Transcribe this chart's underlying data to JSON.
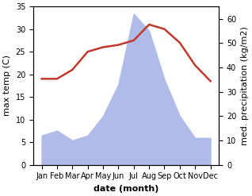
{
  "months": [
    "Jan",
    "Feb",
    "Mar",
    "Apr",
    "May",
    "Jun",
    "Jul",
    "Aug",
    "Sep",
    "Oct",
    "Nov",
    "Dec"
  ],
  "temperature": [
    19.0,
    19.0,
    21.0,
    25.0,
    26.0,
    26.5,
    27.5,
    31.0,
    30.0,
    27.0,
    22.0,
    18.5
  ],
  "precipitation": [
    12,
    14,
    10,
    12,
    20,
    33,
    62,
    55,
    35,
    20,
    11,
    11
  ],
  "temp_color": "#c0392b",
  "precip_fill_color": "#b0bce8",
  "xlabel": "date (month)",
  "ylabel_left": "max temp (C)",
  "ylabel_right": "med. precipitation (kg/m2)",
  "temp_ylim": [
    0,
    35
  ],
  "precip_ylim": [
    0,
    65
  ],
  "temp_yticks": [
    0,
    5,
    10,
    15,
    20,
    25,
    30,
    35
  ],
  "precip_yticks": [
    0,
    10,
    20,
    30,
    40,
    50,
    60
  ],
  "background_color": "#ffffff",
  "label_fontsize": 8,
  "tick_fontsize": 7
}
